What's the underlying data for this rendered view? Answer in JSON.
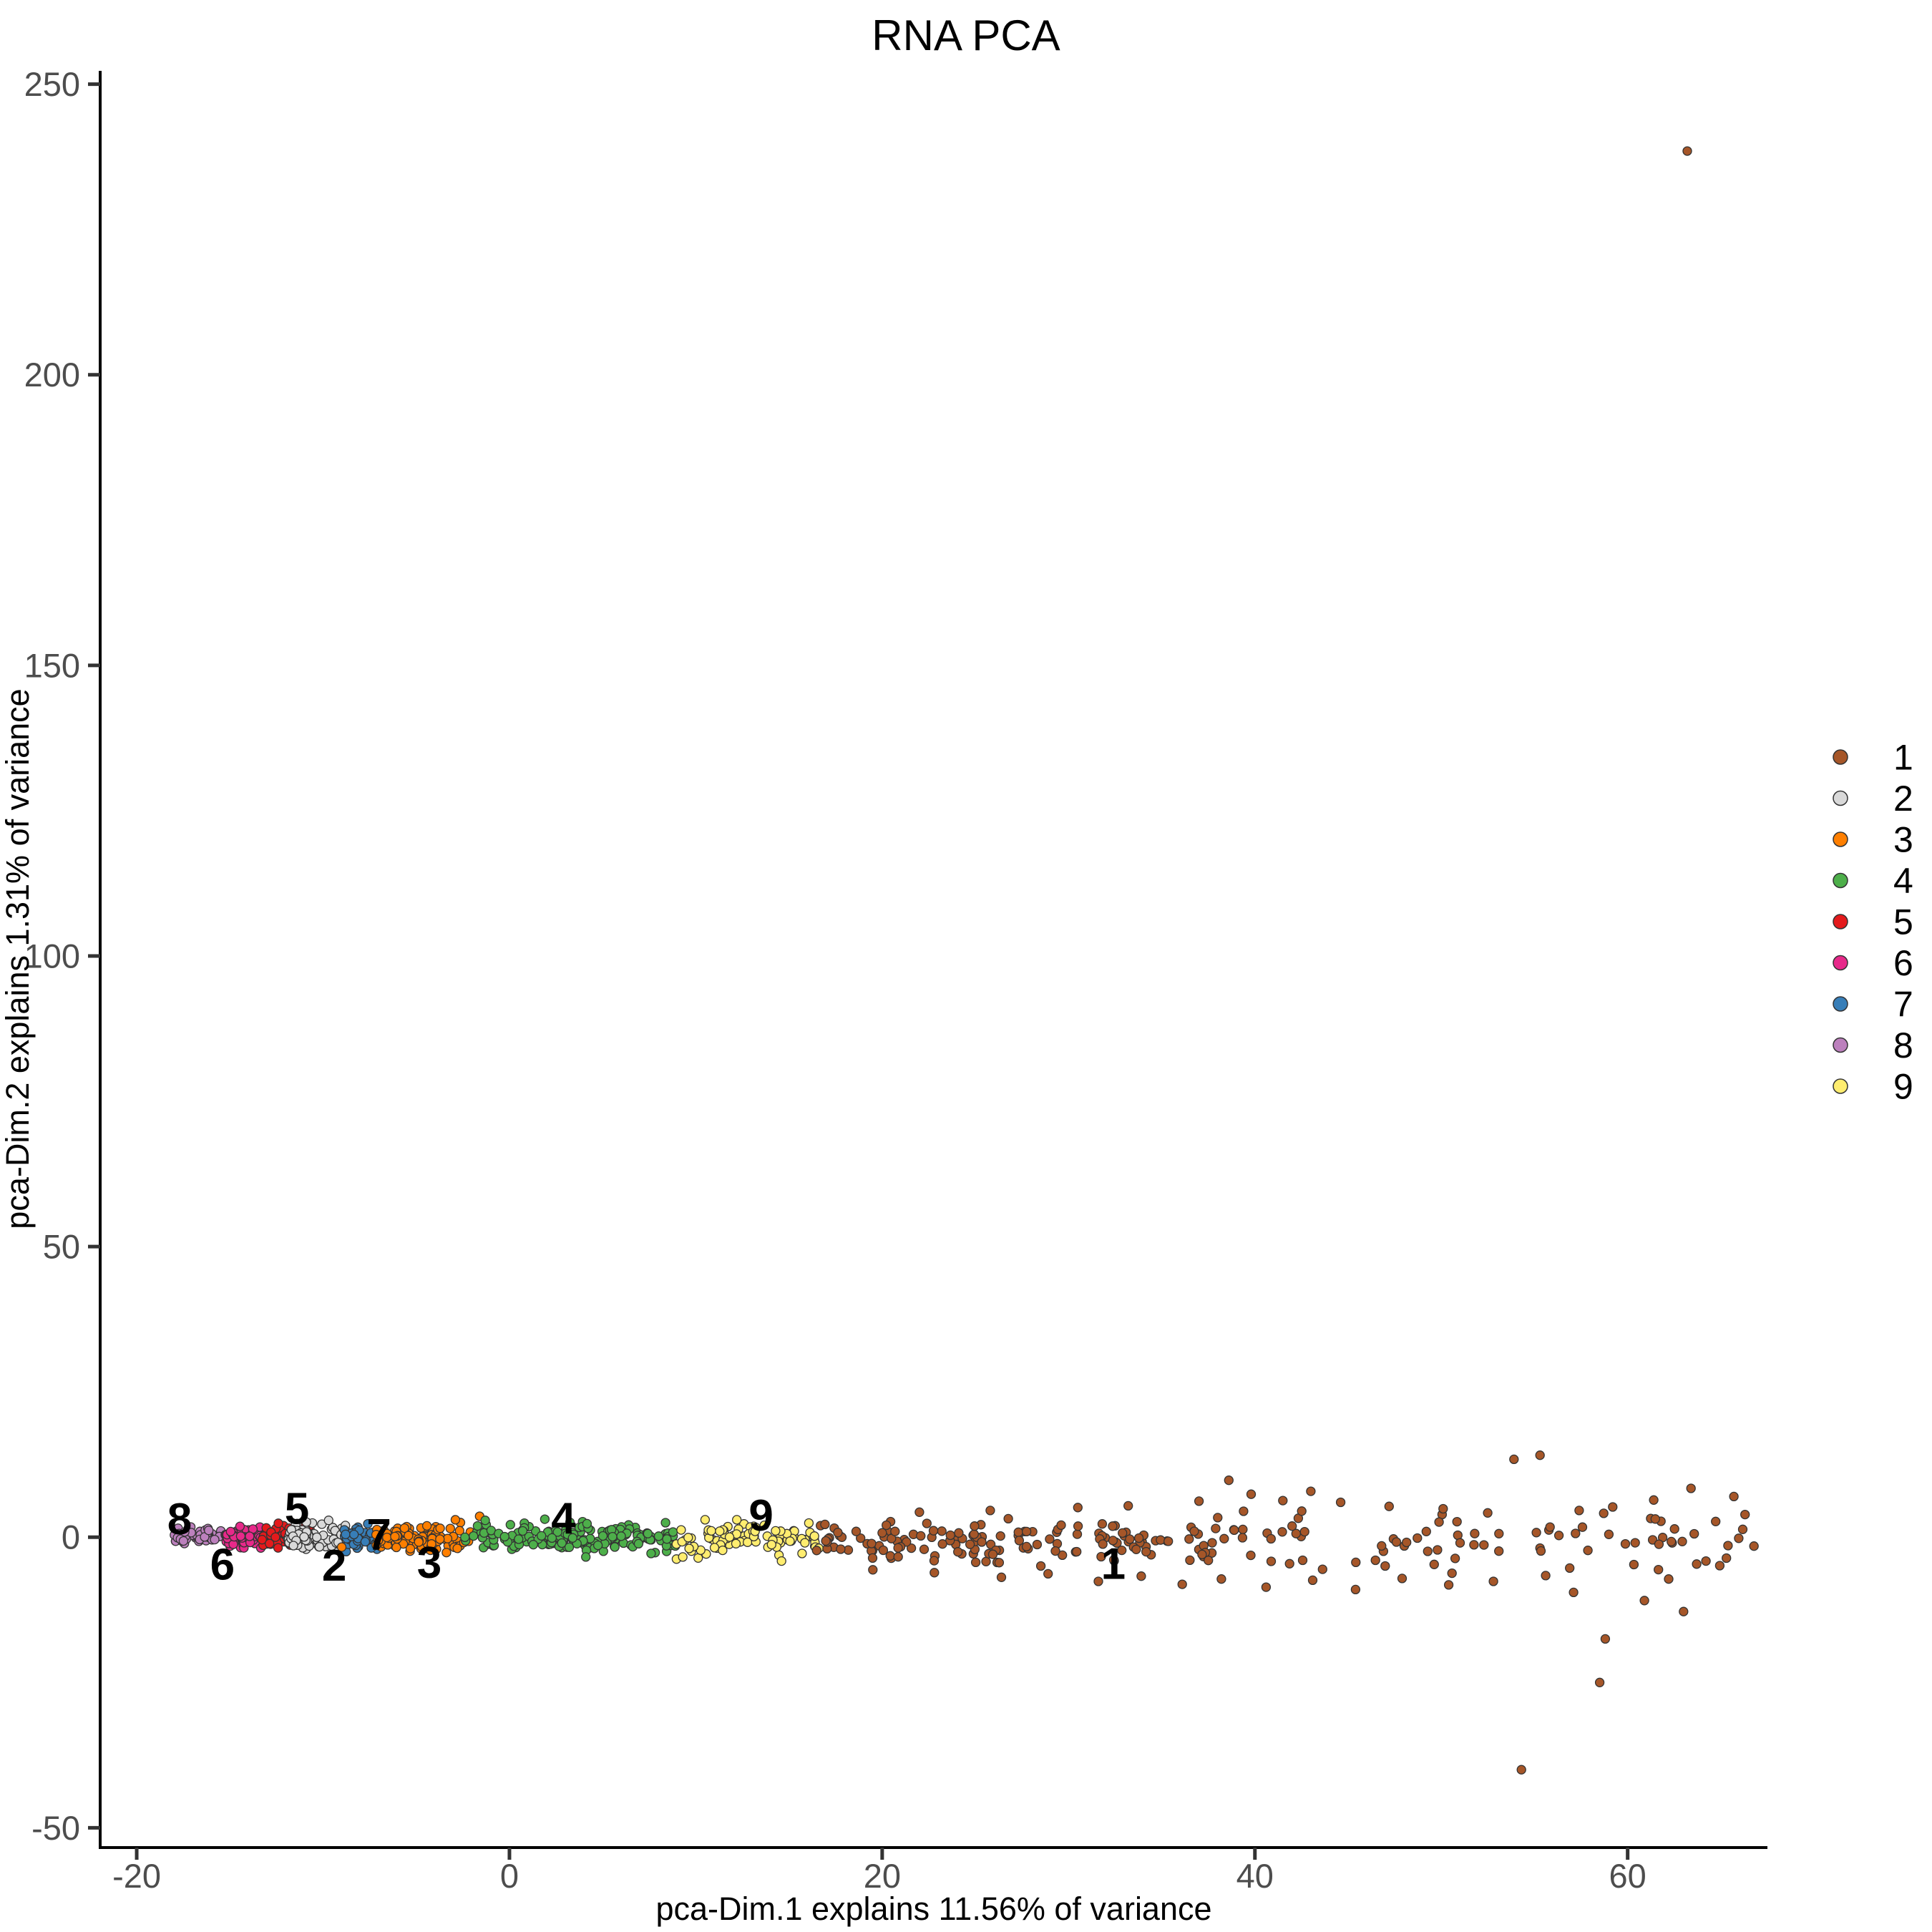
{
  "chart_data": {
    "type": "scatter",
    "title": "RNA PCA",
    "xlabel": "pca-Dim.1 explains 11.56% of variance",
    "ylabel": "pca-Dim.2 explains 1.31% of variance",
    "xlim": [
      -21.96,
      67.5
    ],
    "ylim": [
      -53.4,
      252.3
    ],
    "xticks": [
      -20,
      0,
      20,
      40,
      60
    ],
    "yticks": [
      -50,
      0,
      50,
      100,
      150,
      200,
      250
    ],
    "grid": false,
    "legend_position": "right",
    "background_color": "#FFFFFF",
    "axis_line_color": "#000000",
    "tick_color": "#333333",
    "tick_label_color": "#4D4D4D",
    "point_stroke_color": "#333333",
    "legend": {
      "entries": [
        {
          "label": "1",
          "color": "#A65628"
        },
        {
          "label": "2",
          "color": "#D9D9D9"
        },
        {
          "label": "3",
          "color": "#FF7F00"
        },
        {
          "label": "4",
          "color": "#4DAF4A"
        },
        {
          "label": "5",
          "color": "#E41A1C"
        },
        {
          "label": "6",
          "color": "#E7298A"
        },
        {
          "label": "7",
          "color": "#377EB8"
        },
        {
          "label": "8",
          "color": "#BC80BD"
        },
        {
          "label": "9",
          "color": "#FFED6F"
        }
      ]
    },
    "clusters": [
      {
        "id": "8",
        "label": "8",
        "color": "#BC80BD",
        "label_pos": [
          -17.7,
          3.2
        ],
        "bands": [
          {
            "x": [
              -18.0,
              -14.8
            ],
            "n": 58,
            "y_mean": 0.15,
            "y_sd": 0.7
          }
        ],
        "extra_points": []
      },
      {
        "id": "6",
        "label": "6",
        "color": "#E7298A",
        "label_pos": [
          -15.4,
          -4.6
        ],
        "bands": [
          {
            "x": [
              -15.2,
              -12.8
            ],
            "n": 72,
            "y_mean": 0.0,
            "y_sd": 0.8
          }
        ],
        "extra_points": []
      },
      {
        "id": "5",
        "label": "5",
        "color": "#E41A1C",
        "label_pos": [
          -11.4,
          5.0
        ],
        "bands": [
          {
            "x": [
              -13.3,
              -10.6
            ],
            "n": 74,
            "y_mean": 0.1,
            "y_sd": 0.9
          }
        ],
        "extra_points": [
          [
            -12.4,
            2.4
          ]
        ]
      },
      {
        "id": "2",
        "label": "2",
        "color": "#D9D9D9",
        "label_pos": [
          -9.4,
          -4.8
        ],
        "bands": [
          {
            "x": [
              -11.9,
              -8.8
            ],
            "n": 84,
            "y_mean": -0.2,
            "y_sd": 1.0
          }
        ],
        "extra_points": [
          [
            -9.7,
            2.9
          ],
          [
            -10.9,
            2.6
          ]
        ]
      },
      {
        "id": "7",
        "label": "7",
        "color": "#377EB8",
        "label_pos": [
          -7.0,
          0.5
        ],
        "bands": [
          {
            "x": [
              -8.9,
              -6.9
            ],
            "n": 58,
            "y_mean": -0.2,
            "y_sd": 0.9
          }
        ],
        "extra_points": [
          [
            -7.6,
            2.3
          ]
        ]
      },
      {
        "id": "3",
        "label": "3",
        "color": "#FF7F00",
        "label_pos": [
          -4.3,
          -4.3
        ],
        "bands": [
          {
            "x": [
              -7.2,
              -2.4
            ],
            "n": 125,
            "y_mean": -0.2,
            "y_sd": 1.1
          }
        ],
        "extra_points": [
          [
            -2.9,
            3.0
          ],
          [
            -9.0,
            -1.7
          ],
          [
            -2.1,
            0.9
          ],
          [
            -2.2,
            -0.7
          ],
          [
            -1.6,
            3.6
          ]
        ]
      },
      {
        "id": "4",
        "label": "4",
        "color": "#4DAF4A",
        "label_pos": [
          2.9,
          3.3
        ],
        "bands": [
          {
            "x": [
              -2.4,
              9.0
            ],
            "n": 175,
            "y_mean": -0.1,
            "y_sd": 1.1
          }
        ],
        "extra_points": [
          [
            -1.3,
            2.9
          ],
          [
            1.9,
            3.1
          ],
          [
            4.1,
            -3.4
          ],
          [
            7.6,
            -2.8
          ]
        ]
      },
      {
        "id": "9",
        "label": "9",
        "color": "#FFED6F",
        "label_pos": [
          13.5,
          3.8
        ],
        "bands": [
          {
            "x": [
              8.9,
              16.5
            ],
            "n": 88,
            "y_mean": -0.3,
            "y_sd": 1.3
          }
        ],
        "extra_points": [
          [
            10.5,
            3.0
          ],
          [
            12.2,
            3.0
          ],
          [
            14.6,
            -4.1
          ],
          [
            15.7,
            -2.8
          ],
          [
            9.3,
            -3.4
          ],
          [
            16.6,
            -1.9
          ]
        ]
      },
      {
        "id": "1",
        "label": "1",
        "color": "#A65628",
        "label_pos": [
          32.4,
          -4.5
        ],
        "bands": [
          {
            "x": [
              16.4,
              38.0
            ],
            "n": 150,
            "y_mean": -0.6,
            "y_sd": 1.7
          },
          {
            "x": [
              38.0,
              67.0
            ],
            "n": 82,
            "y_mean": -1.0,
            "y_sd": 2.7
          }
        ],
        "extra_points": [
          [
            63.2,
            238.5
          ],
          [
            54.3,
            -40.0
          ],
          [
            58.5,
            -25.0
          ],
          [
            58.8,
            -17.5
          ],
          [
            63.0,
            -12.8
          ],
          [
            60.9,
            -10.9
          ],
          [
            53.9,
            13.4
          ],
          [
            55.3,
            14.1
          ],
          [
            22.0,
            4.3
          ],
          [
            25.8,
            4.6
          ],
          [
            30.5,
            5.1
          ],
          [
            33.2,
            5.4
          ],
          [
            37.0,
            6.2
          ],
          [
            38.6,
            9.8
          ],
          [
            39.8,
            7.4
          ],
          [
            41.5,
            6.3
          ],
          [
            43.0,
            7.9
          ],
          [
            44.6,
            6.0
          ],
          [
            47.2,
            5.3
          ],
          [
            50.1,
            4.9
          ],
          [
            57.4,
            4.6
          ],
          [
            59.2,
            5.2
          ],
          [
            61.4,
            6.4
          ],
          [
            63.4,
            8.4
          ],
          [
            65.7,
            7.0
          ],
          [
            66.3,
            3.9
          ],
          [
            19.5,
            -5.6
          ],
          [
            22.8,
            -6.1
          ],
          [
            26.4,
            -6.9
          ],
          [
            28.9,
            -6.3
          ],
          [
            31.6,
            -7.6
          ],
          [
            33.9,
            -6.7
          ],
          [
            36.1,
            -8.1
          ],
          [
            38.2,
            -7.2
          ],
          [
            40.6,
            -8.6
          ],
          [
            43.1,
            -7.4
          ],
          [
            45.4,
            -9.0
          ],
          [
            47.9,
            -7.1
          ],
          [
            50.4,
            -8.2
          ],
          [
            52.8,
            -7.6
          ],
          [
            55.6,
            -6.6
          ],
          [
            57.1,
            -9.5
          ],
          [
            62.2,
            -7.2
          ],
          [
            64.2,
            -4.1
          ],
          [
            65.3,
            -3.6
          ]
        ]
      }
    ]
  }
}
